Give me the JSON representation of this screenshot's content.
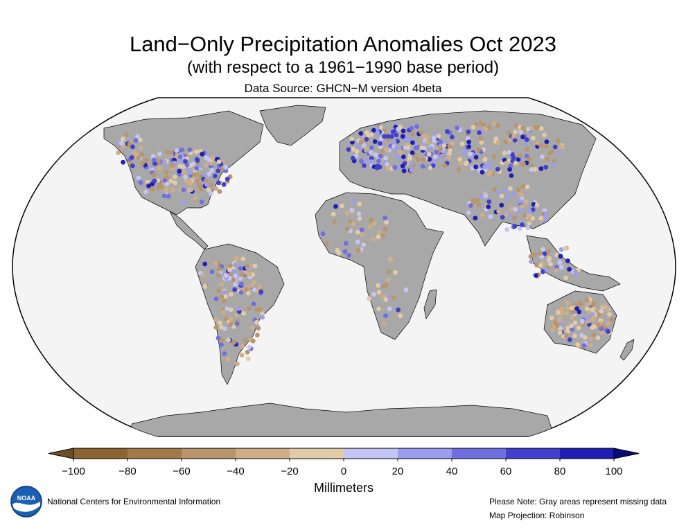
{
  "title": "Land−Only Precipitation Anomalies Oct 2023",
  "subtitle": "(with respect to a 1961−1990 base period)",
  "source": "Data Source: GHCN−M version 4beta",
  "legend": {
    "ticks": [
      "−100",
      "−80",
      "−60",
      "−40",
      "−20",
      "0",
      "20",
      "40",
      "60",
      "80",
      "100"
    ],
    "label": "Millimeters",
    "colors": [
      "#8a6532",
      "#a07a48",
      "#b8956a",
      "#cdae88",
      "#e2cba7",
      "#c5c5f5",
      "#9d9ded",
      "#6f6fdf",
      "#4040cc",
      "#1f1fb4"
    ],
    "under_color": "#6e4f24",
    "over_color": "#09097a"
  },
  "footer": {
    "org": "National Centers for Environmental Information",
    "note": "Please Note: Gray areas represent missing data",
    "projection": "Map Projection: Robinson"
  },
  "logo": {
    "icon": "noaa-logo",
    "text": "NOAA"
  },
  "colors": {
    "ocean": "#f4f4f4",
    "land": "#a8a8a8",
    "border": "#000000"
  }
}
